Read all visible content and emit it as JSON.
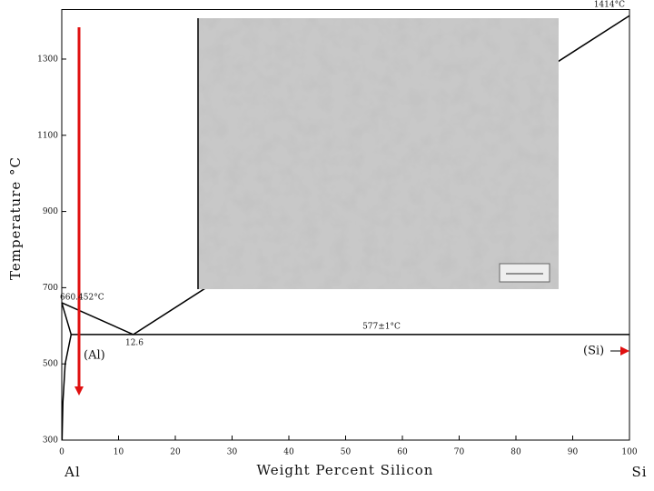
{
  "chart_data": {
    "type": "line",
    "xlabel": "Weight Percent Silicon",
    "ylabel": "Temperature °C",
    "end_labels": [
      "Al",
      "Si"
    ],
    "annotations": [
      "660.452°C",
      "12.6",
      "577±1°C",
      "1414°C",
      "(Al)",
      "(Si)"
    ],
    "xlim": [
      0,
      100
    ],
    "ylim": [
      300,
      1430
    ],
    "xticks": [
      0,
      10,
      20,
      30,
      40,
      50,
      60,
      70,
      80,
      90,
      100
    ],
    "yticks": [
      300,
      500,
      700,
      900,
      1100,
      1300
    ],
    "series": [
      {
        "color": "#000000",
        "x": [
          0,
          12.6,
          100
        ],
        "values": [
          660.452,
          577,
          1414
        ]
      },
      {
        "color": "#000000",
        "x": [
          1.65,
          100
        ],
        "values": [
          577,
          577
        ]
      },
      {
        "color": "#000000",
        "x": [
          0,
          1.65
        ],
        "values": [
          660.452,
          577
        ]
      },
      {
        "color": "#000000",
        "x": [
          1.65,
          0.6,
          0.2,
          0.05
        ],
        "values": [
          577,
          500,
          400,
          300
        ]
      }
    ]
  }
}
